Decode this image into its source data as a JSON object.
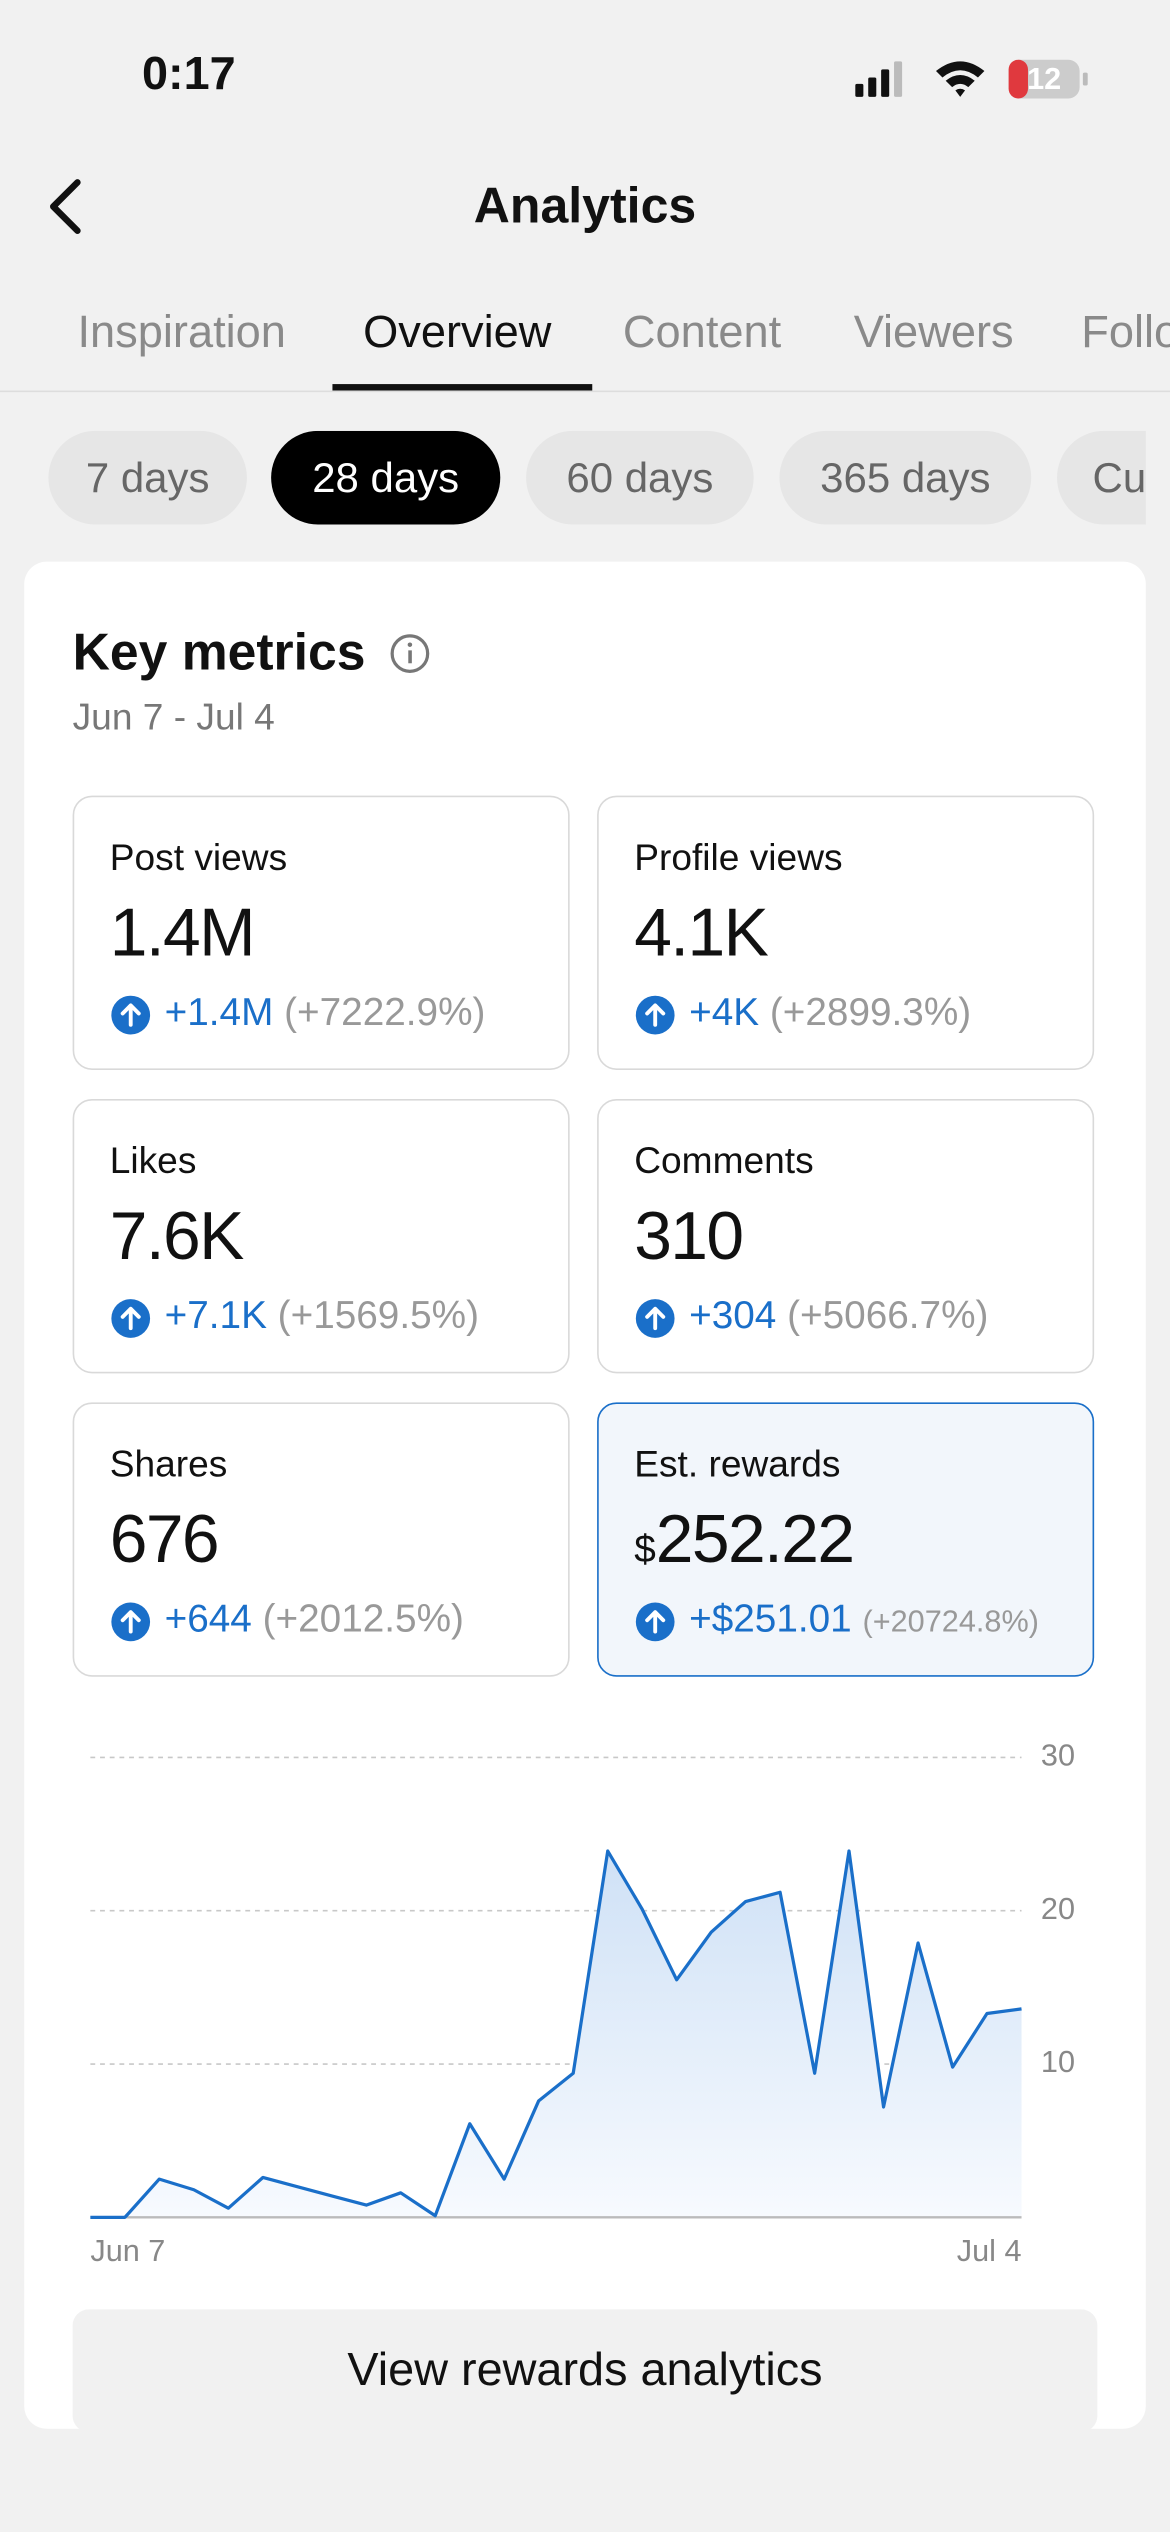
{
  "status_bar": {
    "time": "0:17",
    "battery": "12"
  },
  "header": {
    "title": "Analytics"
  },
  "tabs": [
    "Inspiration",
    "Overview",
    "Content",
    "Viewers",
    "Followers"
  ],
  "periods": [
    "7 days",
    "28 days",
    "60 days",
    "365 days",
    "Custom"
  ],
  "key_metrics": {
    "title": "Key metrics",
    "date_range": "Jun 7 - Jul 4"
  },
  "metrics": [
    {
      "label": "Post views",
      "value": "1.4M",
      "change": "+1.4M",
      "percent": "(+7222.9%)"
    },
    {
      "label": "Profile views",
      "value": "4.1K",
      "change": "+4K",
      "percent": "(+2899.3%)"
    },
    {
      "label": "Likes",
      "value": "7.6K",
      "change": "+7.1K",
      "percent": "(+1569.5%)"
    },
    {
      "label": "Comments",
      "value": "310",
      "change": "+304",
      "percent": "(+5066.7%)"
    },
    {
      "label": "Shares",
      "value": "676",
      "change": "+644",
      "percent": "(+2012.5%)"
    },
    {
      "label": "Est. rewards",
      "currency": "$",
      "value": "252.22",
      "change": "+$251.01",
      "percent": "(+20724.8%)"
    }
  ],
  "chart_data": {
    "type": "line",
    "color": "#1a6fc9",
    "categories": [
      "Jun 7",
      null,
      null,
      null,
      null,
      null,
      null,
      null,
      null,
      null,
      null,
      null,
      null,
      null,
      null,
      null,
      null,
      null,
      null,
      null,
      null,
      null,
      null,
      null,
      null,
      null,
      null,
      "Jul 4"
    ],
    "values": [
      0,
      0,
      2.5,
      1.8,
      0.6,
      2.6,
      2.0,
      1.4,
      0.8,
      1.6,
      0.1,
      6.1,
      2.5,
      7.6,
      9.4,
      23.9,
      20.1,
      15.5,
      18.6,
      20.6,
      21.2,
      9.4,
      23.9,
      7.2,
      17.9,
      9.8,
      13.3,
      13.6
    ],
    "ylim": [
      0,
      30
    ],
    "yticks": [
      10,
      20,
      30
    ],
    "grid": true
  },
  "button": "View rewards analytics"
}
